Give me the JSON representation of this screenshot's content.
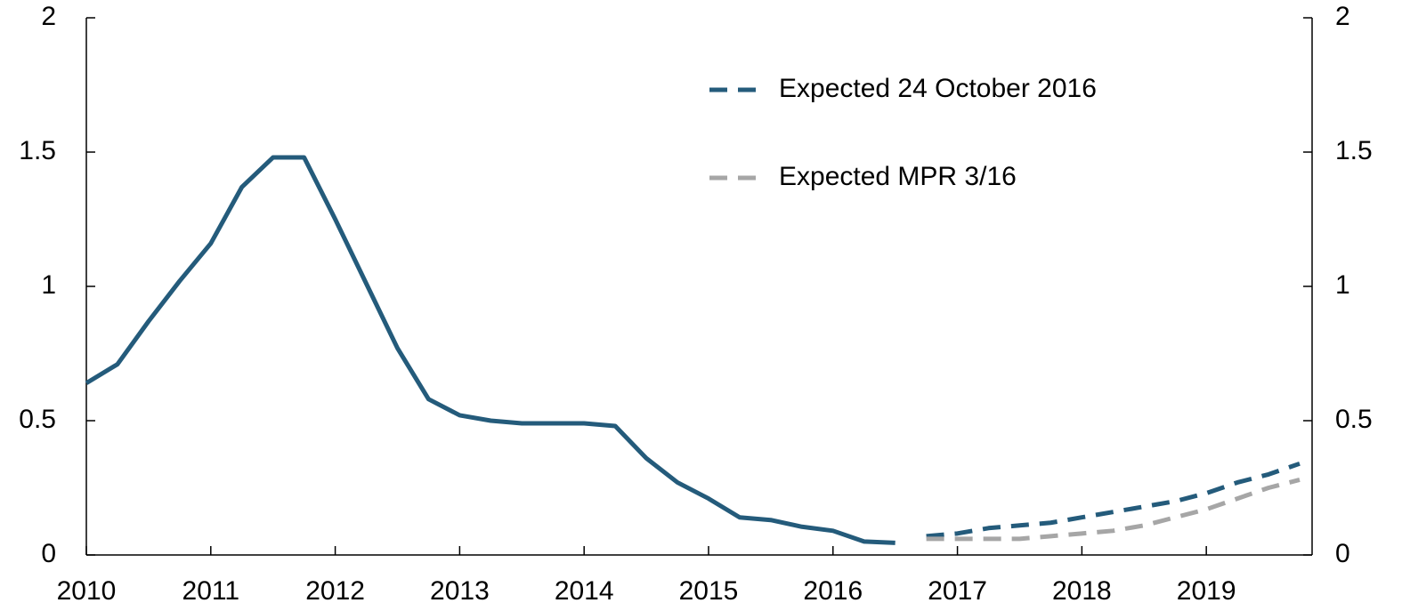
{
  "chart_data": {
    "type": "line",
    "xlim": [
      2010,
      2019.85
    ],
    "xticks": [
      2010,
      2011,
      2012,
      2013,
      2014,
      2015,
      2016,
      2017,
      2018,
      2019
    ],
    "ylim": [
      0,
      2
    ],
    "yticks": [
      0,
      0.5,
      1,
      1.5,
      2
    ],
    "y2lim": [
      0,
      2
    ],
    "y2ticks": [
      0,
      0.5,
      1,
      1.5,
      2
    ],
    "legend": "upper-center",
    "series": [
      {
        "color": "#245b7b",
        "dash": false,
        "x": [
          2010.0,
          2010.25,
          2010.5,
          2010.75,
          2011.0,
          2011.25,
          2011.5,
          2011.75,
          2012.0,
          2012.25,
          2012.5,
          2012.75,
          2013.0,
          2013.25,
          2013.5,
          2013.75,
          2014.0,
          2014.25,
          2014.5,
          2014.75,
          2015.0,
          2015.25,
          2015.5,
          2015.75,
          2016.0,
          2016.25,
          2016.5
        ],
        "values": [
          0.64,
          0.71,
          0.87,
          1.02,
          1.16,
          1.37,
          1.48,
          1.48,
          1.25,
          1.01,
          0.77,
          0.58,
          0.52,
          0.5,
          0.49,
          0.49,
          0.49,
          0.48,
          0.36,
          0.27,
          0.21,
          0.14,
          0.13,
          0.105,
          0.09,
          0.05,
          0.045
        ]
      },
      {
        "name": "Expected 24 October 2016",
        "color": "#245b7b",
        "dash": true,
        "x": [
          2016.75,
          2017.0,
          2017.25,
          2017.5,
          2017.75,
          2018.0,
          2018.25,
          2018.5,
          2018.75,
          2019.0,
          2019.25,
          2019.5,
          2019.75
        ],
        "values": [
          0.07,
          0.08,
          0.1,
          0.11,
          0.12,
          0.14,
          0.16,
          0.18,
          0.2,
          0.23,
          0.27,
          0.3,
          0.34
        ]
      },
      {
        "name": "Expected MPR 3/16",
        "color": "#a6a6a6",
        "dash": true,
        "x": [
          2016.75,
          2017.0,
          2017.25,
          2017.5,
          2017.75,
          2018.0,
          2018.25,
          2018.5,
          2018.75,
          2019.0,
          2019.25,
          2019.5,
          2019.75
        ],
        "values": [
          0.06,
          0.06,
          0.06,
          0.06,
          0.07,
          0.08,
          0.09,
          0.11,
          0.14,
          0.17,
          0.21,
          0.25,
          0.28
        ]
      }
    ]
  }
}
